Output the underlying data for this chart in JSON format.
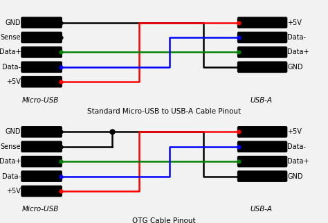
{
  "fig_width": 4.74,
  "fig_height": 3.22,
  "dpi": 100,
  "bg_color": "#f2f2f2",
  "diagram1": {
    "title": "Standard Micro-USB to USB-A Cable Pinout",
    "left_label": "Micro-USB",
    "right_label": "USB-A",
    "left_pins": [
      "GND",
      "Sense",
      "Data+",
      "Data-",
      "+5V"
    ],
    "right_pins": [
      "+5V",
      "Data-",
      "Data+",
      "GND"
    ]
  },
  "diagram2": {
    "title": "OTG Cable Pinout",
    "left_label": "Micro-USB",
    "right_label": "USB-A",
    "left_pins": [
      "GND",
      "Sense",
      "Data+",
      "Data-",
      "+5V"
    ],
    "right_pins": [
      "+5V",
      "Data-",
      "Data+",
      "GND"
    ],
    "otg_dot": true
  },
  "left_pin_colors": [
    "black",
    "black",
    "green",
    "blue",
    "red"
  ],
  "right_pin_colors": [
    "red",
    "blue",
    "green",
    "black"
  ],
  "wire_colors": {
    "GND": "black",
    "Data+": "green",
    "Data-": "blue",
    "+5V": "red"
  }
}
